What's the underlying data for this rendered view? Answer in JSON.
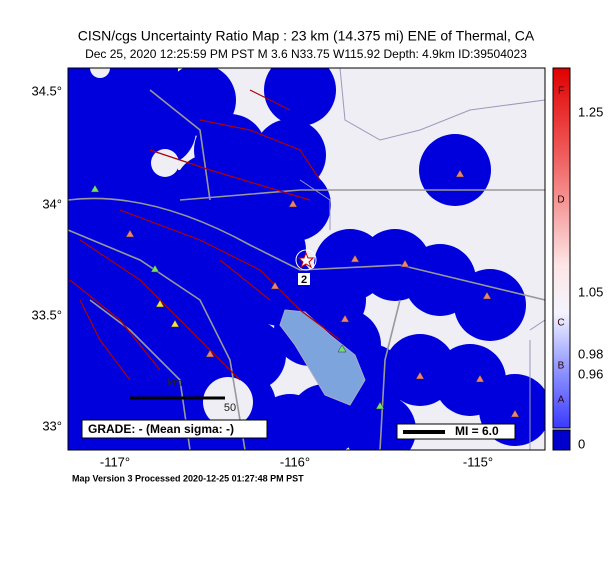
{
  "header": {
    "title": "CISN/cgs Uncertainty Ratio Map : 23 km (14.375 mi) ENE of Thermal, CA",
    "subtitle": "Dec 25, 2020 12:25:59 PM PST   M 3.6   N33.75 W115.92   Depth: 4.9km   ID:39504023"
  },
  "map": {
    "lat_labels": [
      "34.5°",
      "34°",
      "33.5°",
      "33°"
    ],
    "lon_labels": [
      "-117°",
      "-116°",
      "-115°"
    ],
    "station_label": "2",
    "scale_labels": [
      "km",
      "50"
    ],
    "grade": "GRADE: - (Mean sigma: -)",
    "mi_legend": "MI = 6.0"
  },
  "colorbar": {
    "values": [
      "1.25",
      "1.05",
      "0.98",
      "0.96",
      "0"
    ],
    "grades": [
      "F",
      "D",
      "C",
      "B",
      "A"
    ]
  },
  "footer": "Map Version 3 Processed 2020-12-25 01:27:48 PM PST"
}
